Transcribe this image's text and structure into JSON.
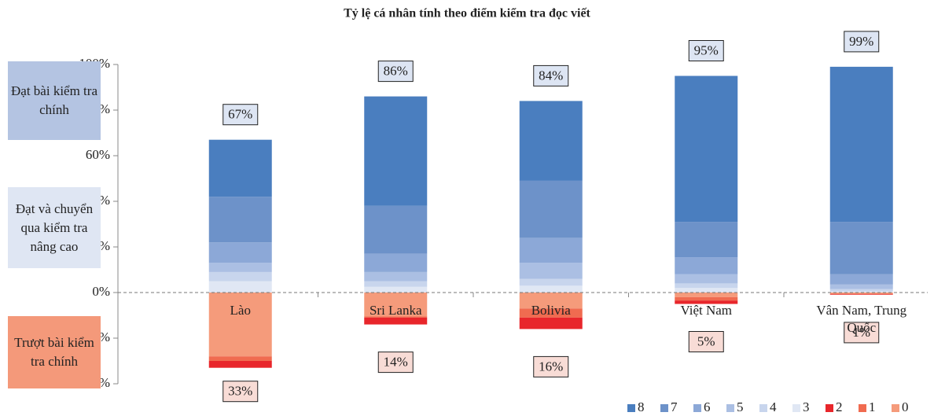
{
  "chart_data": {
    "type": "stacked_bar",
    "title": "Tỷ lệ cá nhân tính theo điểm kiểm tra đọc viết",
    "categories": [
      "Lào",
      "Sri Lanka",
      "Bolivia",
      "Việt Nam",
      "Vân Nam, Trung Quốc"
    ],
    "series": [
      {
        "name": "8",
        "color": "#4a7ebf",
        "values": [
          25,
          48,
          35,
          64,
          68
        ]
      },
      {
        "name": "7",
        "color": "#6d92c9",
        "values": [
          20,
          21,
          25,
          15.5,
          23
        ]
      },
      {
        "name": "6",
        "color": "#8ca8d7",
        "values": [
          9,
          8,
          11,
          7.5,
          4.5
        ]
      },
      {
        "name": "5",
        "color": "#abbfe3",
        "values": [
          4,
          4,
          7,
          4,
          2
        ]
      },
      {
        "name": "4",
        "color": "#c8d5ed",
        "values": [
          4,
          2.5,
          3,
          2,
          1
        ]
      },
      {
        "name": "3",
        "color": "#e0e7f4",
        "values": [
          5,
          2.5,
          3,
          2,
          0.5
        ]
      },
      {
        "name": "2",
        "color": "#e8262b",
        "values": [
          -3,
          -3,
          -5,
          -1.5,
          -0.2
        ]
      },
      {
        "name": "1",
        "color": "#f06b50",
        "values": [
          -2,
          -0.5,
          -4,
          -1.5,
          -0.3
        ]
      },
      {
        "name": "0",
        "color": "#f59b7b",
        "values": [
          -28,
          -10.5,
          -7,
          -2,
          -0.5
        ]
      }
    ],
    "pass_totals": {
      "values": [
        67,
        86,
        84,
        95,
        99
      ],
      "value_labels": [
        "67%",
        "86%",
        "84%",
        "95%",
        "99%"
      ]
    },
    "fail_totals": {
      "values": [
        33,
        14,
        16,
        5,
        1
      ],
      "value_labels": [
        "33%",
        "14%",
        "16%",
        "5%",
        "1%"
      ]
    },
    "ylim": [
      -40,
      100
    ],
    "yticks": [
      {
        "value": -40,
        "label": "-40%"
      },
      {
        "value": -20,
        "label": "-20%"
      },
      {
        "value": 0,
        "label": "0%"
      },
      {
        "value": 20,
        "label": "20%"
      },
      {
        "value": 40,
        "label": "40%"
      },
      {
        "value": 60,
        "label": "60%"
      },
      {
        "value": 80,
        "label": "80%"
      },
      {
        "value": 100,
        "label": "100%"
      }
    ],
    "side_labels": [
      {
        "text": "Đạt bài kiểm tra chính",
        "color": "#b4c4e2"
      },
      {
        "text": "Đạt và chuyển qua kiểm tra nâng cao",
        "color": "#dfe6f3"
      },
      {
        "text": "Trượt bài kiểm tra chính",
        "color": "#f4997a"
      }
    ],
    "legend": "bottom-right"
  }
}
